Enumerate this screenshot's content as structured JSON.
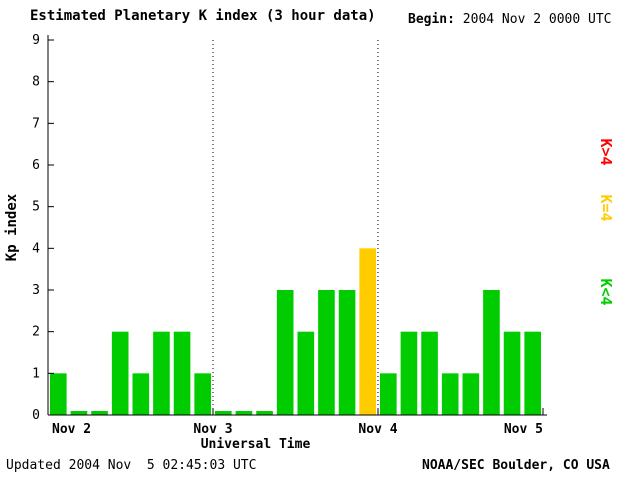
{
  "header": {
    "title": "Estimated Planetary K index (3 hour data)",
    "begin_label": "Begin:",
    "begin_value": "2004 Nov 2 0000 UTC"
  },
  "footer": {
    "updated": "Updated 2004 Nov  5 02:45:03 UTC",
    "attribution": "NOAA/SEC Boulder, CO USA"
  },
  "chart_data": {
    "type": "bar",
    "title": "Estimated Planetary K index (3 hour data)",
    "xlabel": "Universal Time",
    "ylabel": "Kp index",
    "ylim": [
      0,
      9
    ],
    "yticks": [
      0,
      1,
      2,
      3,
      4,
      5,
      6,
      7,
      8,
      9
    ],
    "x_day_labels": [
      "Nov 2",
      "Nov 3",
      "Nov 4",
      "Nov 5"
    ],
    "bar_interval_hours": 3,
    "values": [
      1,
      0,
      0,
      2,
      1,
      2,
      2,
      1,
      0,
      0,
      0,
      3,
      2,
      3,
      3,
      4,
      1,
      2,
      2,
      1,
      1,
      3,
      2,
      2
    ],
    "colors": {
      "low": "#00cc00",
      "equal": "#ffcc00",
      "high": "#ff0000"
    },
    "legend": [
      {
        "label": "K>4",
        "color": "#ff0000"
      },
      {
        "label": "K=4",
        "color": "#ffcc00"
      },
      {
        "label": "K<4",
        "color": "#00cc00"
      }
    ],
    "gridlines_at_days": [
      1,
      2
    ],
    "grid": "dotted-vertical",
    "legend_position": "right-rotated"
  }
}
